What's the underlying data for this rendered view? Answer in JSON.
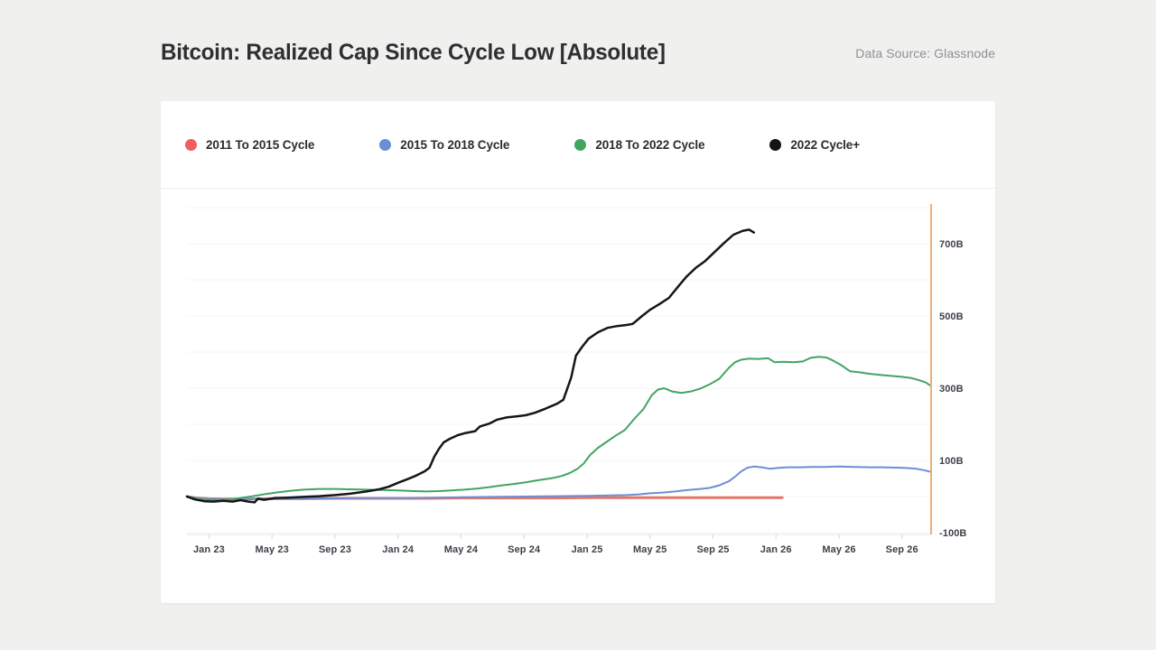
{
  "page": {
    "title": "Bitcoin: Realized Cap Since Cycle Low [Absolute]",
    "data_source": "Data Source: Glassnode"
  },
  "colors": {
    "page_bg": "#f0f0ee",
    "card_bg": "#ffffff",
    "grid": "#f4f4f4",
    "axis_line": "#e4e4e4",
    "tick": "#d6d6d6",
    "marker_line": "#efad76"
  },
  "legend": {
    "items": [
      {
        "label": "2011 To 2015 Cycle",
        "color": "#ee5f5f"
      },
      {
        "label": "2015 To 2018 Cycle",
        "color": "#6b8fd4"
      },
      {
        "label": "2018 To 2022 Cycle",
        "color": "#41a463"
      },
      {
        "label": "2022 Cycle+",
        "color": "#141414"
      }
    ]
  },
  "chart_data": {
    "type": "line",
    "title": "Bitcoin: Realized Cap Since Cycle Low [Absolute]",
    "x_unit": "months since Jan 2023 (cycles aligned to cycle low, low ~ mid-Nov 2022)",
    "x_range": [
      -1.4,
      45.85
    ],
    "y_range": [
      -105,
      810
    ],
    "y_unit": "billion USD",
    "grid": "horizontal",
    "legend_position": "top-left",
    "x_ticks": [
      {
        "t": 0,
        "label": "Jan 23"
      },
      {
        "t": 4,
        "label": "May 23"
      },
      {
        "t": 8,
        "label": "Sep 23"
      },
      {
        "t": 12,
        "label": "Jan 24"
      },
      {
        "t": 16,
        "label": "May 24"
      },
      {
        "t": 20,
        "label": "Sep 24"
      },
      {
        "t": 24,
        "label": "Jan 25"
      },
      {
        "t": 28,
        "label": "May 25"
      },
      {
        "t": 32,
        "label": "Sep 25"
      },
      {
        "t": 36,
        "label": "Jan 26"
      },
      {
        "t": 40,
        "label": "May 26"
      },
      {
        "t": 44,
        "label": "Sep 26"
      }
    ],
    "y_gridline_step": 100,
    "y_labels": [
      {
        "v": 700,
        "label": "700B"
      },
      {
        "v": 500,
        "label": "500B"
      },
      {
        "v": 300,
        "label": "300B"
      },
      {
        "v": 100,
        "label": "100B"
      },
      {
        "v": -100,
        "label": "-100B"
      }
    ],
    "marker_line": {
      "t": 45.85,
      "color": "#efad76",
      "width": 2
    },
    "series": [
      {
        "name": "2011 To 2015 Cycle",
        "color": "#e5756a",
        "line_width": 3,
        "points": [
          [
            -1.4,
            0
          ],
          [
            -0.8,
            -4
          ],
          [
            0,
            -6
          ],
          [
            1,
            -7
          ],
          [
            2,
            -7
          ],
          [
            4,
            -6
          ],
          [
            6,
            -6
          ],
          [
            8,
            -5
          ],
          [
            10,
            -5
          ],
          [
            12,
            -5
          ],
          [
            14,
            -5
          ],
          [
            16,
            -4
          ],
          [
            18,
            -4
          ],
          [
            20,
            -4
          ],
          [
            22,
            -4
          ],
          [
            24,
            -3
          ],
          [
            26,
            -3
          ],
          [
            28,
            -3
          ],
          [
            30,
            -3
          ],
          [
            32,
            -3
          ],
          [
            34,
            -3
          ],
          [
            35.5,
            -3
          ],
          [
            36.4,
            -3
          ]
        ]
      },
      {
        "name": "2015 To 2018 Cycle",
        "color": "#6b8fd4",
        "line_width": 2,
        "points": [
          [
            -1.4,
            0
          ],
          [
            -0.7,
            -5
          ],
          [
            0,
            -7
          ],
          [
            1,
            -8
          ],
          [
            2,
            -8
          ],
          [
            3,
            -7
          ],
          [
            4,
            -7
          ],
          [
            6,
            -6
          ],
          [
            8,
            -5
          ],
          [
            10,
            -4
          ],
          [
            12,
            -4
          ],
          [
            14,
            -3
          ],
          [
            16,
            -2
          ],
          [
            18,
            -1
          ],
          [
            20,
            0
          ],
          [
            22,
            1
          ],
          [
            24,
            2
          ],
          [
            25.5,
            3
          ],
          [
            26.5,
            4
          ],
          [
            27.3,
            6
          ],
          [
            28,
            9
          ],
          [
            28.8,
            11
          ],
          [
            29.6,
            14
          ],
          [
            30.4,
            18
          ],
          [
            31.2,
            21
          ],
          [
            31.8,
            24
          ],
          [
            32.4,
            31
          ],
          [
            33,
            42
          ],
          [
            33.4,
            55
          ],
          [
            33.8,
            70
          ],
          [
            34.2,
            80
          ],
          [
            34.6,
            83
          ],
          [
            35.1,
            81
          ],
          [
            35.6,
            77
          ],
          [
            36.1,
            79
          ],
          [
            36.7,
            81
          ],
          [
            37.5,
            81
          ],
          [
            38.3,
            82
          ],
          [
            39.1,
            82
          ],
          [
            40,
            83
          ],
          [
            41,
            82
          ],
          [
            42,
            81
          ],
          [
            42.8,
            81
          ],
          [
            43.6,
            80
          ],
          [
            44.3,
            79
          ],
          [
            44.9,
            77
          ],
          [
            45.4,
            73
          ],
          [
            45.85,
            68
          ]
        ]
      },
      {
        "name": "2018 To 2022 Cycle",
        "color": "#41a463",
        "line_width": 2,
        "points": [
          [
            -1.4,
            0
          ],
          [
            -0.8,
            -6
          ],
          [
            -0.2,
            -9
          ],
          [
            0.5,
            -10
          ],
          [
            1.2,
            -8
          ],
          [
            2,
            -4
          ],
          [
            2.8,
            1
          ],
          [
            3.6,
            7
          ],
          [
            4.4,
            12
          ],
          [
            5.2,
            16
          ],
          [
            6,
            19
          ],
          [
            7,
            21
          ],
          [
            8,
            21
          ],
          [
            9,
            20
          ],
          [
            10,
            19
          ],
          [
            11,
            18
          ],
          [
            12,
            17
          ],
          [
            13,
            15
          ],
          [
            13.8,
            14
          ],
          [
            14.6,
            15
          ],
          [
            15.4,
            17
          ],
          [
            16.2,
            19
          ],
          [
            17,
            22
          ],
          [
            17.8,
            26
          ],
          [
            18.6,
            31
          ],
          [
            19.4,
            35
          ],
          [
            20.2,
            40
          ],
          [
            21,
            46
          ],
          [
            21.8,
            51
          ],
          [
            22.4,
            57
          ],
          [
            22.9,
            65
          ],
          [
            23.4,
            77
          ],
          [
            23.8,
            92
          ],
          [
            24.2,
            115
          ],
          [
            24.7,
            135
          ],
          [
            25.2,
            150
          ],
          [
            25.8,
            168
          ],
          [
            26.4,
            184
          ],
          [
            27,
            215
          ],
          [
            27.6,
            243
          ],
          [
            28.1,
            280
          ],
          [
            28.5,
            296
          ],
          [
            28.9,
            300
          ],
          [
            29.4,
            291
          ],
          [
            30,
            287
          ],
          [
            30.6,
            291
          ],
          [
            31.2,
            299
          ],
          [
            31.8,
            311
          ],
          [
            32.4,
            326
          ],
          [
            33,
            356
          ],
          [
            33.4,
            372
          ],
          [
            33.8,
            379
          ],
          [
            34.3,
            382
          ],
          [
            34.9,
            381
          ],
          [
            35.5,
            383
          ],
          [
            35.9,
            372
          ],
          [
            36.5,
            373
          ],
          [
            37.1,
            372
          ],
          [
            37.7,
            374
          ],
          [
            38.2,
            384
          ],
          [
            38.7,
            387
          ],
          [
            39.2,
            385
          ],
          [
            39.6,
            377
          ],
          [
            40.1,
            365
          ],
          [
            40.7,
            347
          ],
          [
            41.3,
            344
          ],
          [
            41.9,
            340
          ],
          [
            42.6,
            337
          ],
          [
            43.3,
            334
          ],
          [
            43.9,
            332
          ],
          [
            44.6,
            328
          ],
          [
            45.1,
            322
          ],
          [
            45.5,
            316
          ],
          [
            45.85,
            306
          ]
        ]
      },
      {
        "name": "2022 Cycle+",
        "color": "#161616",
        "line_width": 2.5,
        "points": [
          [
            -1.4,
            0
          ],
          [
            -0.9,
            -8
          ],
          [
            -0.3,
            -13
          ],
          [
            0.3,
            -14
          ],
          [
            0.9,
            -12
          ],
          [
            1.5,
            -14
          ],
          [
            2,
            -10
          ],
          [
            2.5,
            -14
          ],
          [
            2.9,
            -16
          ],
          [
            3.1,
            -6
          ],
          [
            3.5,
            -9
          ],
          [
            4.2,
            -4
          ],
          [
            5,
            -3
          ],
          [
            6,
            -1
          ],
          [
            7,
            1
          ],
          [
            8,
            4
          ],
          [
            9,
            8
          ],
          [
            10,
            14
          ],
          [
            10.8,
            20
          ],
          [
            11.4,
            27
          ],
          [
            12,
            38
          ],
          [
            12.6,
            48
          ],
          [
            13.1,
            57
          ],
          [
            13.7,
            70
          ],
          [
            14,
            80
          ],
          [
            14.3,
            110
          ],
          [
            14.6,
            132
          ],
          [
            14.9,
            150
          ],
          [
            15.3,
            160
          ],
          [
            15.8,
            170
          ],
          [
            16.3,
            176
          ],
          [
            16.9,
            181
          ],
          [
            17.2,
            194
          ],
          [
            17.8,
            202
          ],
          [
            18.3,
            213
          ],
          [
            18.9,
            219
          ],
          [
            19.5,
            222
          ],
          [
            20.1,
            225
          ],
          [
            20.7,
            232
          ],
          [
            21.4,
            244
          ],
          [
            22.1,
            257
          ],
          [
            22.5,
            268
          ],
          [
            23,
            330
          ],
          [
            23.3,
            390
          ],
          [
            23.7,
            415
          ],
          [
            24.1,
            437
          ],
          [
            24.7,
            455
          ],
          [
            25.3,
            467
          ],
          [
            25.9,
            472
          ],
          [
            26.5,
            475
          ],
          [
            26.9,
            478
          ],
          [
            27.5,
            500
          ],
          [
            28,
            517
          ],
          [
            28.6,
            533
          ],
          [
            29.2,
            550
          ],
          [
            29.8,
            582
          ],
          [
            30.3,
            608
          ],
          [
            30.9,
            633
          ],
          [
            31.5,
            652
          ],
          [
            32.1,
            677
          ],
          [
            32.7,
            702
          ],
          [
            33.3,
            725
          ],
          [
            33.9,
            736
          ],
          [
            34.3,
            739
          ],
          [
            34.6,
            731
          ]
        ]
      }
    ]
  }
}
